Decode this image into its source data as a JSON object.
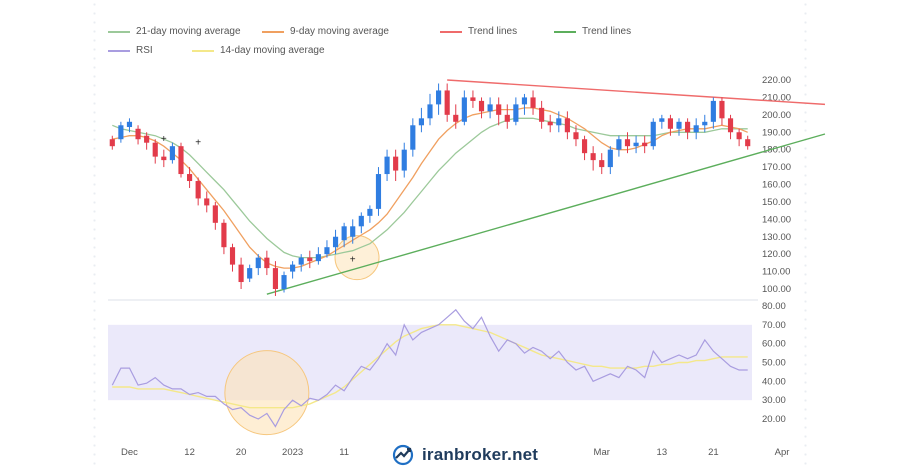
{
  "legend": [
    {
      "label": "21-day moving average",
      "color": "#9cc99a"
    },
    {
      "label": "9-day moving average",
      "color": "#f0a060"
    },
    {
      "label": "Trend lines",
      "color": "#ef6b6b"
    },
    {
      "label": "Trend lines",
      "color": "#5cae5c"
    },
    {
      "label": "RSI",
      "color": "#a99de0"
    },
    {
      "label": "14-day moving average",
      "color": "#f4e88a"
    }
  ],
  "watermark": "iranbroker.net",
  "chart_data": [
    {
      "type": "candlestick",
      "price_ticks": [
        "220.00",
        "210.00",
        "200.00",
        "190.00",
        "180.00",
        "170.00",
        "160.00",
        "150.00",
        "140.00",
        "130.00",
        "120.00",
        "110.00",
        "100.00"
      ],
      "ylim": [
        95,
        222
      ],
      "x_ticks": [
        {
          "label": "Dec",
          "i": 2
        },
        {
          "label": "12",
          "i": 9
        },
        {
          "label": "20",
          "i": 15
        },
        {
          "label": "2023",
          "i": 21
        },
        {
          "label": "11",
          "i": 27
        },
        {
          "label": "Mar",
          "i": 57
        },
        {
          "label": "13",
          "i": 64
        },
        {
          "label": "21",
          "i": 70
        },
        {
          "label": "Apr",
          "i": 78
        }
      ],
      "candles": [
        [
          186,
          182,
          188,
          180
        ],
        [
          186,
          194,
          196,
          184
        ],
        [
          193,
          196,
          198,
          190
        ],
        [
          192,
          186,
          194,
          183
        ],
        [
          188,
          184,
          190,
          180
        ],
        [
          184,
          176,
          186,
          172
        ],
        [
          176,
          174,
          180,
          170
        ],
        [
          174,
          182,
          184,
          172
        ],
        [
          182,
          166,
          184,
          164
        ],
        [
          166,
          162,
          170,
          158
        ],
        [
          162,
          152,
          164,
          148
        ],
        [
          152,
          148,
          156,
          144
        ],
        [
          148,
          138,
          150,
          134
        ],
        [
          138,
          124,
          140,
          120
        ],
        [
          124,
          114,
          126,
          110
        ],
        [
          114,
          104,
          118,
          100
        ],
        [
          106,
          112,
          114,
          104
        ],
        [
          112,
          118,
          120,
          108
        ],
        [
          118,
          112,
          122,
          108
        ],
        [
          112,
          100,
          116,
          96
        ],
        [
          100,
          108,
          110,
          98
        ],
        [
          110,
          114,
          116,
          106
        ],
        [
          114,
          118,
          120,
          110
        ],
        [
          118,
          116,
          122,
          112
        ],
        [
          116,
          120,
          124,
          114
        ],
        [
          120,
          124,
          128,
          118
        ],
        [
          124,
          130,
          134,
          120
        ],
        [
          128,
          136,
          138,
          124
        ],
        [
          130,
          136,
          140,
          126
        ],
        [
          136,
          142,
          144,
          132
        ],
        [
          142,
          146,
          148,
          138
        ],
        [
          146,
          166,
          170,
          142
        ],
        [
          166,
          176,
          180,
          162
        ],
        [
          176,
          168,
          180,
          162
        ],
        [
          168,
          180,
          184,
          164
        ],
        [
          180,
          194,
          198,
          176
        ],
        [
          194,
          198,
          204,
          190
        ],
        [
          198,
          206,
          212,
          194
        ],
        [
          206,
          214,
          218,
          200
        ],
        [
          214,
          200,
          218,
          196
        ],
        [
          200,
          196,
          206,
          192
        ],
        [
          196,
          210,
          214,
          194
        ],
        [
          210,
          208,
          214,
          204
        ],
        [
          208,
          202,
          210,
          198
        ],
        [
          202,
          206,
          210,
          198
        ],
        [
          206,
          200,
          210,
          194
        ],
        [
          200,
          196,
          206,
          192
        ],
        [
          196,
          206,
          210,
          194
        ],
        [
          206,
          210,
          212,
          200
        ],
        [
          210,
          204,
          214,
          200
        ],
        [
          204,
          196,
          208,
          192
        ],
        [
          196,
          194,
          200,
          190
        ],
        [
          194,
          198,
          202,
          190
        ],
        [
          198,
          190,
          202,
          186
        ],
        [
          190,
          186,
          194,
          182
        ],
        [
          186,
          178,
          188,
          174
        ],
        [
          178,
          174,
          182,
          168
        ],
        [
          174,
          170,
          178,
          166
        ],
        [
          170,
          180,
          182,
          166
        ],
        [
          180,
          186,
          188,
          176
        ],
        [
          186,
          182,
          190,
          178
        ],
        [
          182,
          184,
          188,
          178
        ],
        [
          184,
          182,
          188,
          178
        ],
        [
          182,
          196,
          198,
          180
        ],
        [
          196,
          198,
          200,
          192
        ],
        [
          198,
          192,
          200,
          188
        ],
        [
          192,
          196,
          198,
          188
        ],
        [
          196,
          190,
          198,
          186
        ],
        [
          190,
          194,
          198,
          186
        ],
        [
          194,
          196,
          200,
          190
        ],
        [
          196,
          208,
          210,
          192
        ],
        [
          208,
          198,
          210,
          194
        ],
        [
          198,
          190,
          200,
          186
        ],
        [
          190,
          186,
          192,
          182
        ],
        [
          186,
          182,
          188,
          180
        ]
      ],
      "ma21": [
        194,
        192,
        191,
        190,
        189,
        188,
        186,
        184,
        181,
        177,
        172,
        167,
        162,
        157,
        151,
        145,
        139,
        134,
        129,
        125,
        121,
        119,
        118,
        118,
        118,
        119,
        120,
        121,
        122,
        124,
        126,
        130,
        134,
        139,
        144,
        150,
        156,
        162,
        168,
        173,
        178,
        182,
        186,
        190,
        193,
        195,
        197,
        198,
        198,
        198,
        197,
        196,
        195,
        194,
        192,
        191,
        190,
        189,
        188,
        188,
        188,
        188,
        188,
        188,
        189,
        190,
        190,
        190,
        190,
        190,
        191,
        192,
        192,
        192,
        192
      ],
      "ma9": [
        186,
        187,
        188,
        188,
        187,
        185,
        182,
        178,
        174,
        169,
        163,
        157,
        151,
        145,
        138,
        131,
        124,
        119,
        115,
        113,
        112,
        112,
        113,
        115,
        117,
        119,
        122,
        125,
        128,
        131,
        134,
        138,
        143,
        150,
        157,
        164,
        172,
        179,
        186,
        191,
        195,
        198,
        200,
        201,
        202,
        203,
        203,
        203,
        204,
        204,
        203,
        202,
        200,
        198,
        195,
        192,
        188,
        184,
        181,
        180,
        180,
        181,
        183,
        185,
        188,
        190,
        191,
        192,
        192,
        192,
        193,
        194,
        193,
        192,
        190
      ],
      "trend_red": {
        "from_i": 39,
        "from_y": 220,
        "to_i": 83,
        "to_y": 206
      },
      "trend_green": {
        "from_i": 18,
        "from_y": 97,
        "to_i": 83,
        "to_y": 189
      }
    },
    {
      "type": "line",
      "rsi_ticks": [
        "80.00",
        "70.00",
        "60.00",
        "50.00",
        "40.00",
        "30.00",
        "20.00"
      ],
      "ylim": [
        14,
        82
      ],
      "band": [
        30,
        70
      ],
      "rsi": [
        38,
        47,
        47,
        38,
        39,
        42,
        38,
        36,
        36,
        33,
        34,
        32,
        32,
        28,
        25,
        26,
        22,
        20,
        23,
        16,
        25,
        30,
        27,
        31,
        30,
        33,
        38,
        35,
        42,
        48,
        46,
        52,
        60,
        54,
        70,
        62,
        66,
        68,
        70,
        74,
        78,
        72,
        68,
        74,
        64,
        56,
        62,
        60,
        55,
        58,
        56,
        52,
        56,
        50,
        46,
        48,
        40,
        42,
        44,
        42,
        48,
        46,
        42,
        56,
        50,
        52,
        54,
        52,
        54,
        62,
        56,
        52,
        48,
        46,
        46
      ],
      "rsi_ma14": [
        37,
        37,
        37,
        36,
        36,
        36,
        36,
        35,
        34,
        33,
        32,
        31,
        30,
        29,
        28,
        27,
        26,
        26,
        26,
        26,
        26,
        26,
        27,
        28,
        30,
        32,
        34,
        37,
        41,
        45,
        49,
        53,
        57,
        61,
        64,
        66,
        68,
        69,
        70,
        70,
        70,
        69,
        68,
        67,
        66,
        64,
        62,
        60,
        58,
        56,
        54,
        53,
        52,
        51,
        50,
        49,
        48,
        48,
        47,
        47,
        47,
        47,
        48,
        48,
        49,
        49,
        50,
        50,
        51,
        51,
        52,
        53,
        53,
        53,
        53
      ]
    }
  ]
}
